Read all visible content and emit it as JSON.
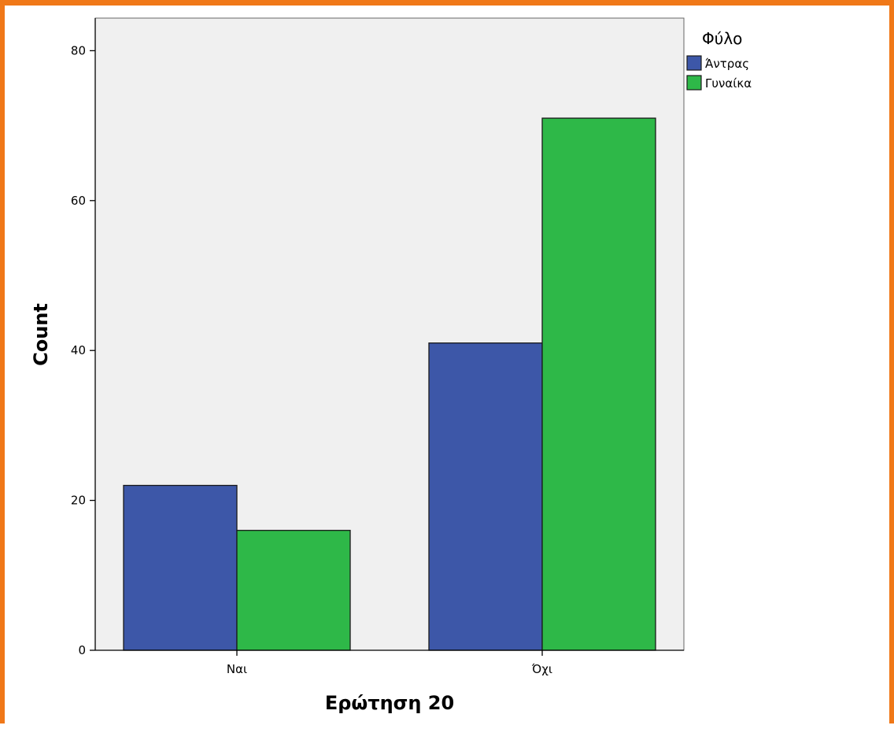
{
  "chart_data": {
    "type": "bar",
    "title": "",
    "xlabel": "Ερώτηση 20",
    "ylabel": "Count",
    "categories": [
      "Ναι",
      "Όχι"
    ],
    "series": [
      {
        "name": "Άντρας",
        "values": [
          22,
          41
        ],
        "color": "#3D57A8"
      },
      {
        "name": "Γυναίκα",
        "values": [
          16,
          71
        ],
        "color": "#2EB848"
      }
    ],
    "ylim": [
      0,
      84
    ],
    "yticks": [
      0,
      20,
      40,
      60,
      80
    ],
    "grid": false,
    "legend": {
      "title": "Φύλο",
      "position": "top-right"
    },
    "plot_background": "#F0F0F0",
    "frame_color": "#F07818"
  }
}
